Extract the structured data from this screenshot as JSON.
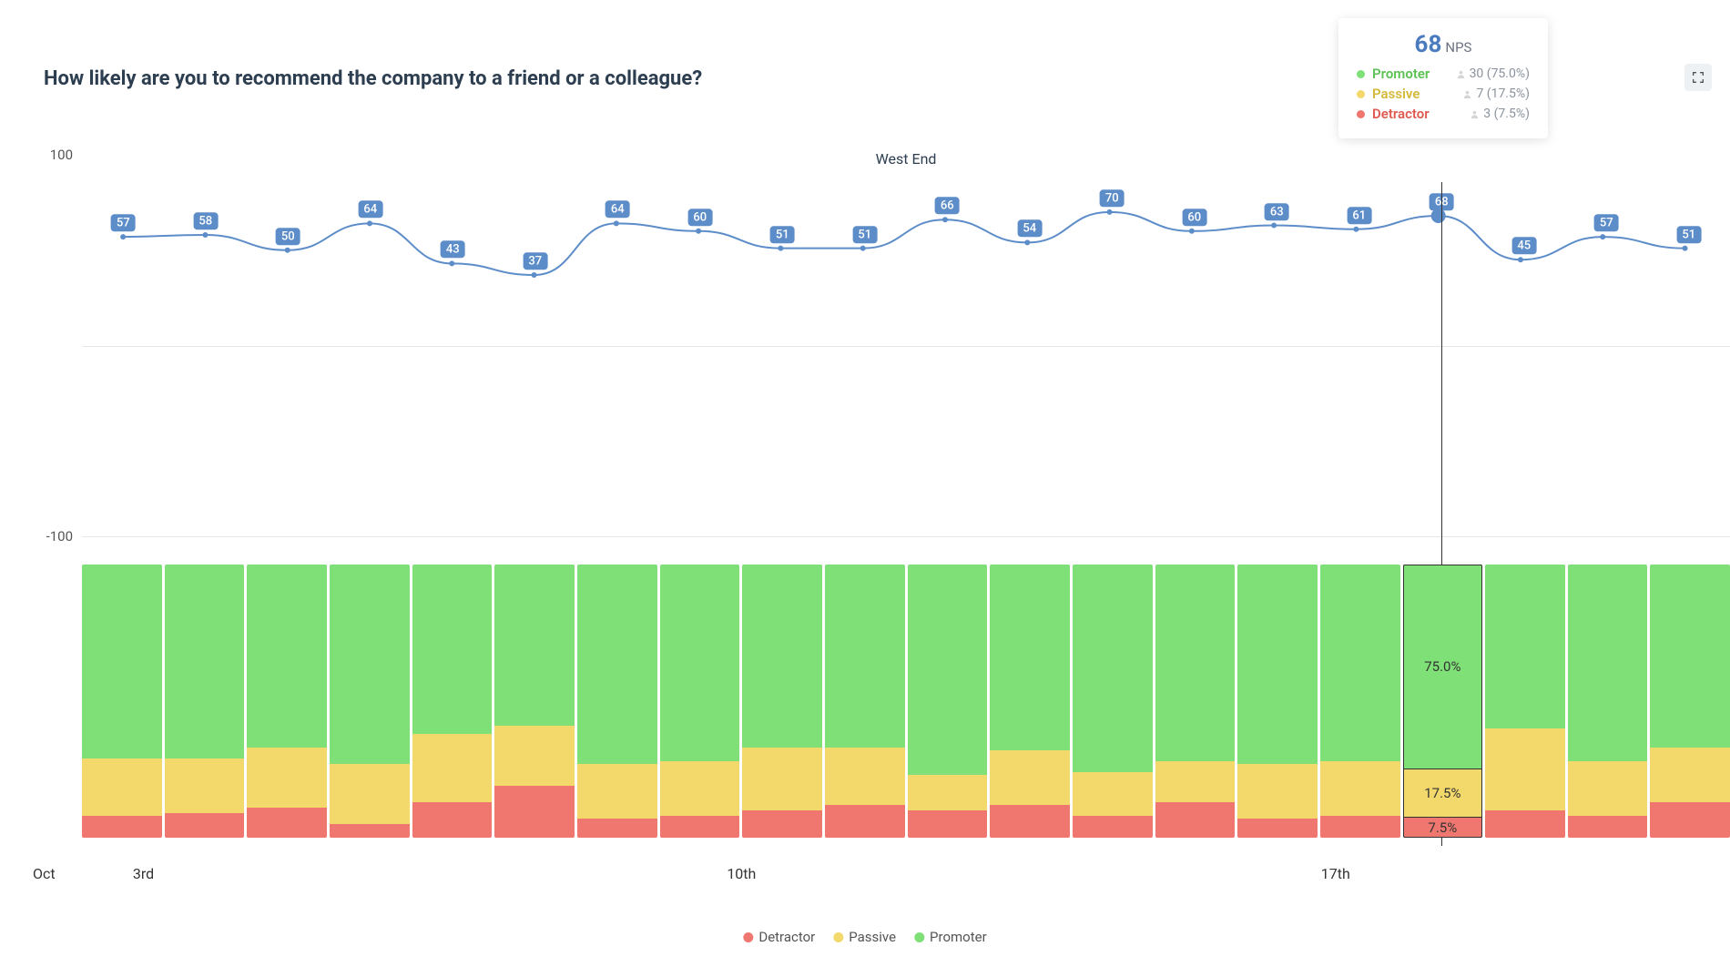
{
  "title": "How likely are you to recommend the company to a friend or a colleague?",
  "subtitle": "West End",
  "colors": {
    "promoter": "#7ee076",
    "passive": "#f3d96b",
    "detractor": "#ef776f",
    "line": "#5d8dc9",
    "label_bg": "#5d8dc9",
    "grid": "#e5e7eb"
  },
  "line_chart": {
    "ylim": [
      -100,
      100
    ],
    "yticks": [
      100,
      -100
    ],
    "points": [
      57,
      58,
      50,
      64,
      43,
      37,
      64,
      60,
      51,
      51,
      66,
      54,
      70,
      60,
      63,
      61,
      68,
      45,
      57,
      51
    ],
    "selected_index": 16
  },
  "stacked_chart": {
    "bars": [
      {
        "promoter": 71,
        "passive": 21,
        "detractor": 8
      },
      {
        "promoter": 71,
        "passive": 20,
        "detractor": 9
      },
      {
        "promoter": 67,
        "passive": 22,
        "detractor": 11
      },
      {
        "promoter": 73,
        "passive": 22,
        "detractor": 5
      },
      {
        "promoter": 62,
        "passive": 25,
        "detractor": 13
      },
      {
        "promoter": 59,
        "passive": 22,
        "detractor": 19
      },
      {
        "promoter": 73,
        "passive": 20,
        "detractor": 7
      },
      {
        "promoter": 72,
        "passive": 20,
        "detractor": 8
      },
      {
        "promoter": 67,
        "passive": 23,
        "detractor": 10
      },
      {
        "promoter": 67,
        "passive": 21,
        "detractor": 12
      },
      {
        "promoter": 77,
        "passive": 13,
        "detractor": 10
      },
      {
        "promoter": 68,
        "passive": 20,
        "detractor": 12
      },
      {
        "promoter": 76,
        "passive": 16,
        "detractor": 8
      },
      {
        "promoter": 72,
        "passive": 15,
        "detractor": 13
      },
      {
        "promoter": 73,
        "passive": 20,
        "detractor": 7
      },
      {
        "promoter": 72,
        "passive": 20,
        "detractor": 8
      },
      {
        "promoter": 75.0,
        "passive": 17.5,
        "detractor": 7.5
      },
      {
        "promoter": 60,
        "passive": 30,
        "detractor": 10
      },
      {
        "promoter": 72,
        "passive": 20,
        "detractor": 8
      },
      {
        "promoter": 67,
        "passive": 20,
        "detractor": 13
      }
    ],
    "selected_index": 16,
    "selected_labels": {
      "promoter": "75.0%",
      "passive": "17.5%",
      "detractor": "7.5%"
    }
  },
  "x_axis": {
    "month": "Oct",
    "ticks": [
      {
        "label": "3rd",
        "pos_pct": 3
      },
      {
        "label": "10th",
        "pos_pct": 38
      },
      {
        "label": "17th",
        "pos_pct": 73
      }
    ]
  },
  "tooltip": {
    "nps_value": "68",
    "nps_label": "NPS",
    "rows": [
      {
        "label": "Promoter",
        "color": "#7ee076",
        "text_color": "#5cc254",
        "count": 30,
        "pct": "75.0%"
      },
      {
        "label": "Passive",
        "color": "#f3d96b",
        "text_color": "#d4b93a",
        "count": 7,
        "pct": "17.5%"
      },
      {
        "label": "Detractor",
        "color": "#ef776f",
        "text_color": "#e05a52",
        "count": 3,
        "pct": "7.5%"
      }
    ]
  },
  "bottom_legend": [
    {
      "label": "Detractor",
      "color": "#ef776f"
    },
    {
      "label": "Passive",
      "color": "#f3d96b"
    },
    {
      "label": "Promoter",
      "color": "#7ee076"
    }
  ]
}
